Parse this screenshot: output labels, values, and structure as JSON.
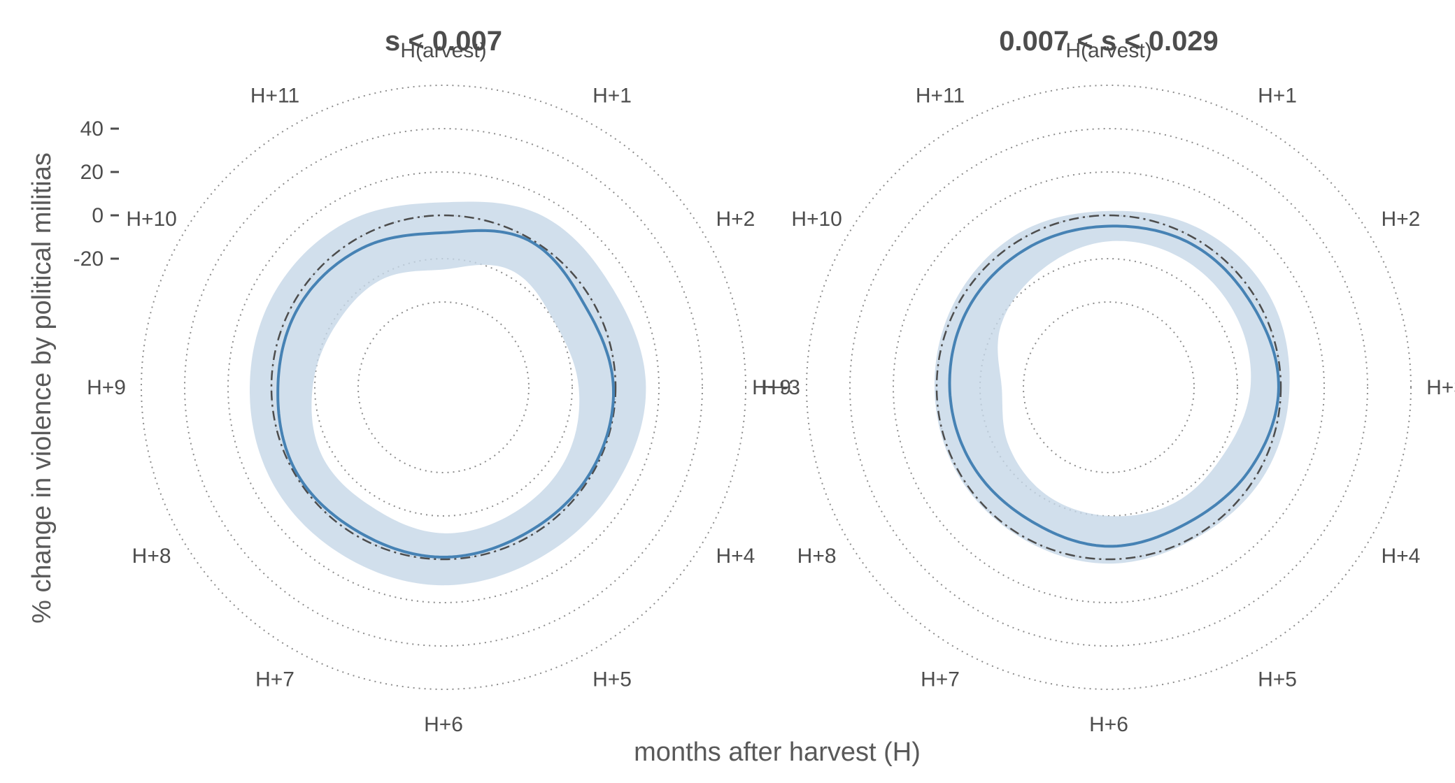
{
  "chart_data": {
    "type": "line",
    "subtype": "polar",
    "ylabel": "% change in violence by political militias",
    "xlabel": "months after harvest (H)",
    "theta_labels": [
      "H(arvest)",
      "H+1",
      "H+2",
      "H+3",
      "H+4",
      "H+5",
      "H+6",
      "H+7",
      "H+8",
      "H+9",
      "H+10",
      "H+11"
    ],
    "radial_ticks": [
      40,
      20,
      0,
      -20
    ],
    "radial_lim": [
      -60,
      60
    ],
    "grid_circles": [
      -40,
      -20,
      0,
      20,
      40,
      60
    ],
    "reference_value": 0,
    "colors": {
      "line": "#4682b4",
      "band": "#c6d7e7",
      "reference": "#4d4d4d",
      "grid": "#8c8c8c",
      "text": "#4d4d4d"
    },
    "panels": [
      {
        "title": "s < 0.007",
        "series": {
          "estimate": [
            -8,
            -1,
            -4,
            -1,
            -1,
            -2,
            -1,
            -2,
            -1,
            -3,
            -3,
            -5
          ],
          "lower": [
            -25,
            -17,
            -20,
            -17,
            -14,
            -13,
            -12,
            -15,
            -15,
            -19,
            -22,
            -22
          ],
          "upper": [
            6,
            12,
            11,
            14,
            12,
            11,
            12,
            11,
            11,
            10,
            10,
            9
          ]
        }
      },
      {
        "title": "0.007 < s < 0.029",
        "series": {
          "estimate": [
            -5,
            -3,
            -3,
            -1,
            -4,
            -7,
            -6,
            -8,
            -7,
            -6,
            -5,
            -5
          ],
          "lower": [
            -12,
            -11,
            -12,
            -14,
            -18,
            -18,
            -20,
            -22,
            -26,
            -30,
            -22,
            -17
          ],
          "upper": [
            2,
            5,
            6,
            4,
            3,
            1,
            2,
            1,
            1,
            1,
            2,
            3
          ]
        }
      }
    ]
  }
}
